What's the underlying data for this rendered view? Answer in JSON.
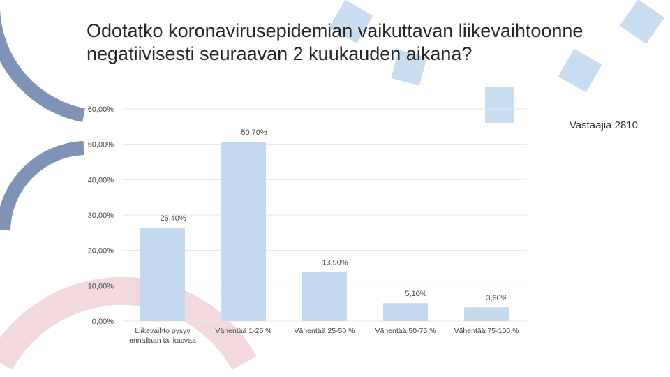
{
  "slide": {
    "title": "Odotatko koronavirusepidemian vaikuttavan liikevaihtoonne negatiivisesti seuraavan 2 kuukauden aikana?",
    "respondents": "Vastaajia 2810"
  },
  "colors": {
    "bar": "#c5d9ee",
    "grid": "#e6e6e6",
    "deco_blue": "#c9ddf0",
    "deco_steel": "#7e93b5",
    "deco_pink": "#f1d9de"
  },
  "chart_data": {
    "type": "bar",
    "categories": [
      "Liikevaihto pysyy ennallaan tai kasvaa",
      "Vähentää 1-25 %",
      "Vähentää 25-50 %",
      "Vähentää 50-75 %",
      "Vähentää 75-100 %"
    ],
    "values": [
      26.4,
      50.7,
      13.9,
      5.1,
      3.9
    ],
    "data_labels": [
      "26,40%",
      "50,70%",
      "13,90%",
      "5,10%",
      "3,90%"
    ],
    "ylim": [
      0,
      60
    ],
    "yticks": [
      0,
      10,
      20,
      30,
      40,
      50,
      60
    ],
    "ytick_labels": [
      "0,00%",
      "10,00%",
      "20,00%",
      "30,00%",
      "40,00%",
      "50,00%",
      "60,00%"
    ],
    "grid": true,
    "legend": "none",
    "title": "",
    "xlabel": "",
    "ylabel": ""
  }
}
